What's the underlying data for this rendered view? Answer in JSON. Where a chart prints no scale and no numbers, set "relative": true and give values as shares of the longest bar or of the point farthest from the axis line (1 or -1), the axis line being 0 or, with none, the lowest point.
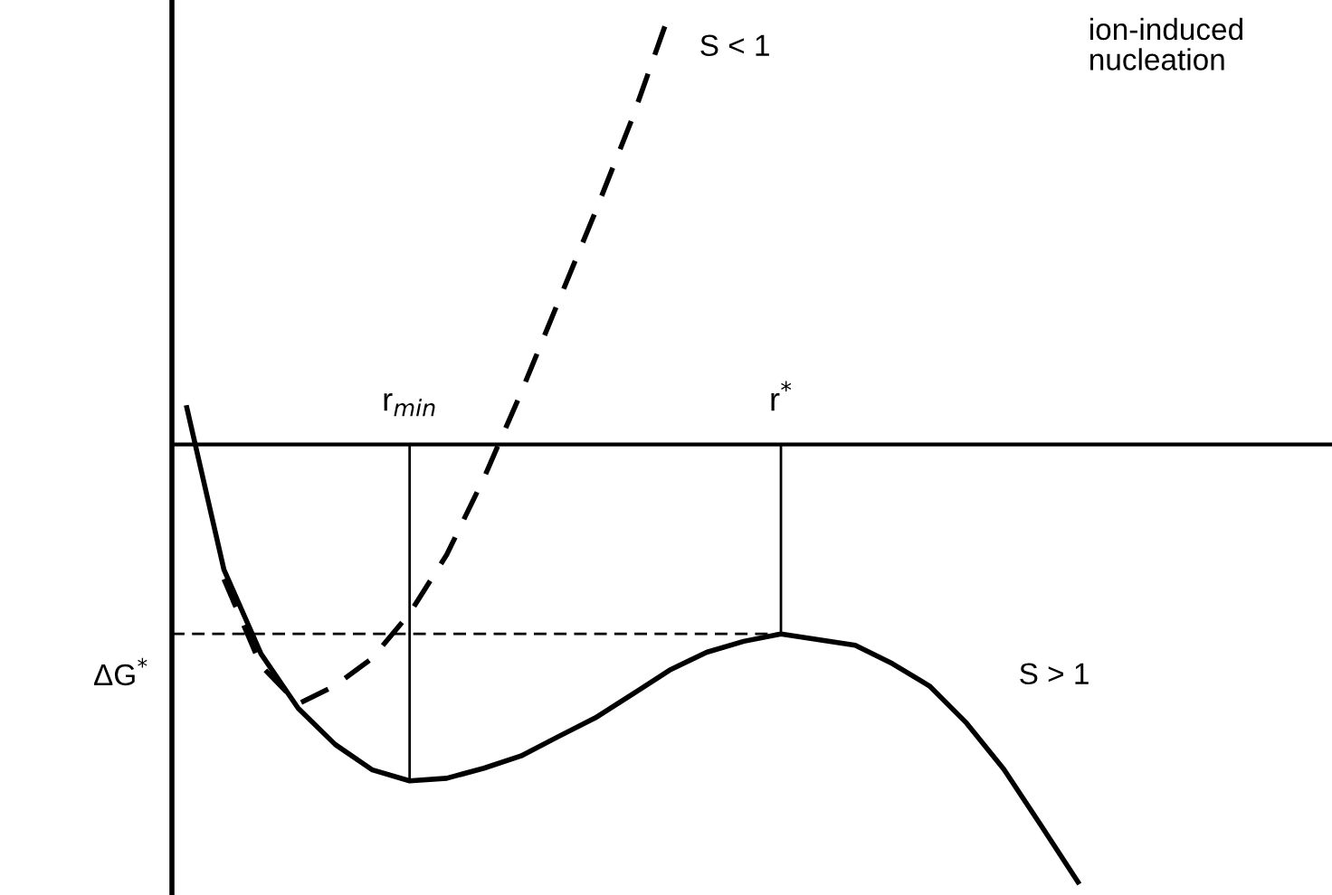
{
  "chart_data": {
    "type": "line",
    "relative": true,
    "categories": [
      null,
      null,
      null,
      null,
      null,
      null,
      null,
      null,
      null,
      null,
      null,
      null,
      null,
      null,
      null,
      null,
      null,
      null,
      null,
      null,
      null,
      null,
      null,
      null,
      null
    ],
    "annotations": [
      {
        "text": "r$_{min}$",
        "y": -0.769
      },
      {
        "text": "r$^{*}$",
        "y": -0.433
      },
      "ion-induced\nnucleation"
    ],
    "series": [
      {
        "name": "S < 1",
        "color": "#000000",
        "line_style": "dashed",
        "values": [
          null,
          -0.308,
          -0.506,
          -0.593,
          -0.551,
          -0.488,
          -0.386,
          -0.252,
          -0.077,
          0.118,
          0.325,
          0.531,
          0.746,
          0.986,
          null,
          null,
          null,
          null,
          null,
          null,
          null,
          null,
          null,
          null,
          null
        ]
      },
      {
        "name": "S > 1",
        "color": "#000000",
        "line_style": "solid",
        "values": [
          0.084,
          -0.286,
          -0.479,
          -0.603,
          -0.686,
          -0.744,
          -0.769,
          -0.763,
          -0.74,
          -0.712,
          -0.668,
          -0.625,
          -0.571,
          -0.516,
          -0.475,
          -0.45,
          -0.433,
          -0.446,
          -0.459,
          -0.501,
          -0.552,
          -0.637,
          -0.742,
          -0.87,
          -1.0
        ]
      }
    ],
    "ref_lines": [
      {
        "axis": "y",
        "value": -0.433,
        "label": "ΔG$^{*}$",
        "color": "#000000",
        "line_style": "dashed"
      }
    ],
    "marker": "none"
  }
}
